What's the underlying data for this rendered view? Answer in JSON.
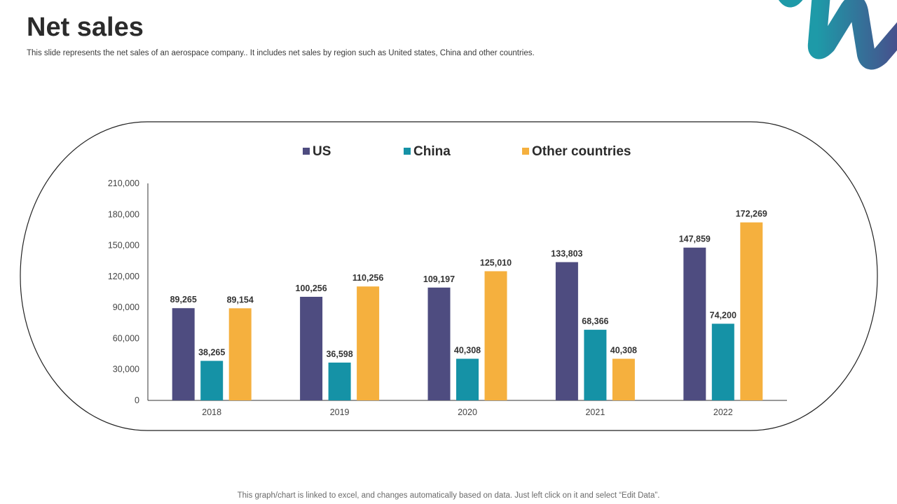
{
  "page": {
    "title": "Net sales",
    "subtitle": "This slide represents the net sales of an aerospace company.. It includes net sales by region such as United states, China and other countries.",
    "footnote": "This graph/chart is linked to excel, and changes automatically based on data. Just left click on it and select “Edit Data”."
  },
  "decor": {
    "logo_icon": "swoosh-logo-icon",
    "logo_colors": [
      "#1e9aa8",
      "#4a4a8a"
    ]
  },
  "chart_data": {
    "type": "bar",
    "title": "",
    "xlabel": "",
    "ylabel": "",
    "categories": [
      "2018",
      "2019",
      "2020",
      "2021",
      "2022"
    ],
    "series": [
      {
        "name": "US",
        "color": "#4e4c80",
        "values": [
          89265,
          100256,
          109197,
          133803,
          147859
        ],
        "labels": [
          "89,265",
          "100,256",
          "109,197",
          "133,803",
          "147,859"
        ]
      },
      {
        "name": "China",
        "color": "#1592a6",
        "values": [
          38265,
          36598,
          40308,
          68366,
          74200
        ],
        "labels": [
          "38,265",
          "36,598",
          "40,308",
          "68,366",
          "74,200"
        ]
      },
      {
        "name": "Other countries",
        "color": "#f5b03e",
        "values": [
          89154,
          110256,
          125010,
          40308,
          172269
        ],
        "labels": [
          "89,154",
          "110,256",
          "125,010",
          "40,308",
          "172,269"
        ]
      }
    ],
    "ylim": [
      0,
      210000
    ],
    "yticks": [
      0,
      30000,
      60000,
      90000,
      120000,
      150000,
      180000,
      210000
    ],
    "ytick_labels": [
      "0",
      "30,000",
      "60,000",
      "90,000",
      "120,000",
      "150,000",
      "180,000",
      "210,000"
    ],
    "legend": "top-center",
    "grid": false
  }
}
